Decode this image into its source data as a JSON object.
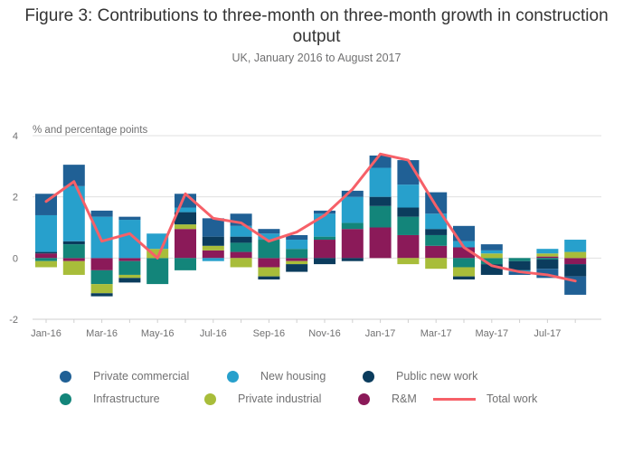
{
  "chart_data": {
    "type": "bar",
    "stacked": true,
    "title": "Figure 3: Contributions to three-month on three-month growth in construction output",
    "subtitle": "UK, January 2016 to August 2017",
    "ylabel": "% and percentage points",
    "ylim": [
      -2,
      4
    ],
    "yticks": [
      -2,
      0,
      2,
      4
    ],
    "grid": true,
    "legend_position": "bottom",
    "categories": [
      "Jan-16",
      "Feb-16",
      "Mar-16",
      "Apr-16",
      "May-16",
      "Jun-16",
      "Jul-16",
      "Aug-16",
      "Sep-16",
      "Oct-16",
      "Nov-16",
      "Dec-16",
      "Jan-17",
      "Feb-17",
      "Mar-17",
      "Apr-17",
      "May-17",
      "Jun-17",
      "Jul-17",
      "Aug-17"
    ],
    "xtick_labels": [
      "Jan-16",
      "",
      "Mar-16",
      "",
      "May-16",
      "",
      "Jul-16",
      "",
      "Sep-16",
      "",
      "Nov-16",
      "",
      "Jan-17",
      "",
      "Mar-17",
      "",
      "May-17",
      "",
      "Jul-17",
      ""
    ],
    "series": [
      {
        "name": "R&M",
        "kind": "bar",
        "color": "#8b1a59",
        "values": [
          0.15,
          -0.1,
          -0.4,
          -0.1,
          0.0,
          0.95,
          0.25,
          0.2,
          -0.3,
          -0.1,
          0.6,
          0.95,
          1.0,
          0.75,
          0.4,
          0.35,
          0.0,
          0.0,
          0.05,
          -0.2
        ]
      },
      {
        "name": "Infrastructure",
        "kind": "bar",
        "color": "#13857a",
        "values": [
          -0.1,
          0.45,
          -0.45,
          -0.45,
          -0.85,
          -0.4,
          0.0,
          0.3,
          0.6,
          0.3,
          0.1,
          0.2,
          0.7,
          0.6,
          0.35,
          -0.3,
          -0.2,
          -0.1,
          -0.05,
          0.0
        ]
      },
      {
        "name": "Private industrial",
        "kind": "bar",
        "color": "#a8bd3a",
        "values": [
          -0.2,
          -0.45,
          -0.3,
          -0.1,
          0.3,
          0.15,
          0.15,
          -0.3,
          -0.3,
          -0.1,
          0.0,
          0.0,
          0.0,
          -0.2,
          -0.35,
          -0.3,
          0.15,
          0.0,
          0.1,
          0.2
        ]
      },
      {
        "name": "Public new work",
        "kind": "bar",
        "color": "#0b3c5d",
        "values": [
          0.05,
          0.1,
          -0.1,
          -0.15,
          0.0,
          0.4,
          0.3,
          0.2,
          -0.1,
          -0.25,
          -0.2,
          -0.1,
          0.3,
          0.3,
          0.2,
          -0.1,
          -0.35,
          -0.3,
          -0.3,
          -0.4
        ]
      },
      {
        "name": "New housing",
        "kind": "bar",
        "color": "#27a0cc",
        "values": [
          1.2,
          1.8,
          1.35,
          1.25,
          0.5,
          0.15,
          -0.1,
          0.35,
          0.2,
          0.3,
          0.75,
          0.85,
          0.95,
          0.75,
          0.5,
          0.2,
          0.1,
          -0.05,
          0.15,
          0.4
        ]
      },
      {
        "name": "Private commercial",
        "kind": "bar",
        "color": "#206095",
        "values": [
          0.7,
          0.7,
          0.2,
          0.1,
          0.0,
          0.45,
          0.6,
          0.4,
          0.15,
          0.15,
          0.1,
          0.2,
          0.4,
          0.8,
          0.7,
          0.5,
          0.2,
          -0.1,
          -0.3,
          -0.6
        ]
      },
      {
        "name": "Total work",
        "kind": "line",
        "color": "#f66068",
        "values": [
          1.85,
          2.5,
          0.55,
          0.8,
          0.0,
          2.1,
          1.3,
          1.15,
          0.55,
          0.85,
          1.4,
          2.25,
          3.4,
          3.2,
          1.7,
          0.35,
          -0.25,
          -0.45,
          -0.55,
          -0.75
        ]
      }
    ],
    "legend_order": [
      "Private commercial",
      "New housing",
      "Public new work",
      "Infrastructure",
      "Private industrial",
      "R&M",
      "Total work"
    ]
  }
}
